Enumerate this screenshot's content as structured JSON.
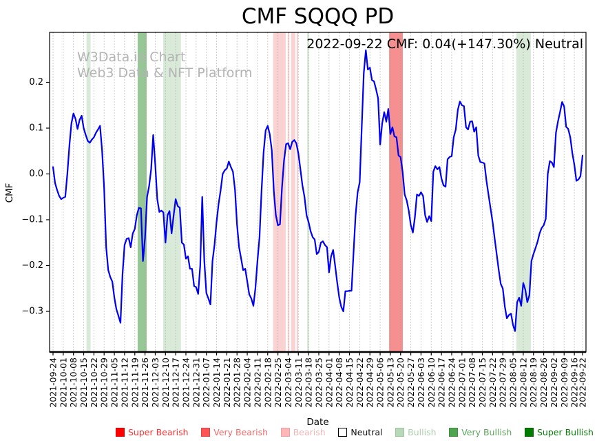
{
  "title": "CMF SQQQ PD",
  "annotation": "2022-09-22 CMF: 0.04(+147.30%) Neutral",
  "watermark": {
    "line1": "W3Data.io Chart",
    "line2": "Web3 Data & NFT Platform"
  },
  "chart_data": {
    "type": "line",
    "title": "CMF SQQQ PD",
    "xlabel": "Date",
    "ylabel": "CMF",
    "ylim": [
      -0.389,
      0.309
    ],
    "yticks": [
      0.2,
      0.1,
      0.0,
      -0.1,
      -0.2,
      -0.3
    ],
    "grid": "vertical-dotted",
    "legend_position": "bottom",
    "line_color": "#0000ee",
    "grid_color": "#999999",
    "x_tick_labels": [
      "2021-09-24",
      "2021-10-01",
      "2021-10-08",
      "2021-10-15",
      "2021-10-22",
      "2021-10-29",
      "2021-11-05",
      "2021-11-12",
      "2021-11-19",
      "2021-11-26",
      "2021-12-03",
      "2021-12-10",
      "2021-12-17",
      "2021-12-24",
      "2021-12-31",
      "2022-01-07",
      "2022-01-14",
      "2022-01-21",
      "2022-01-28",
      "2022-02-04",
      "2022-02-11",
      "2022-02-18",
      "2022-02-25",
      "2022-03-04",
      "2022-03-11",
      "2022-03-18",
      "2022-03-25",
      "2022-04-01",
      "2022-04-08",
      "2022-04-15",
      "2022-04-22",
      "2022-04-29",
      "2022-05-06",
      "2022-05-13",
      "2022-05-20",
      "2022-05-27",
      "2022-06-03",
      "2022-06-10",
      "2022-06-17",
      "2022-06-24",
      "2022-07-01",
      "2022-07-08",
      "2022-07-15",
      "2022-07-22",
      "2022-07-29",
      "2022-08-05",
      "2022-08-12",
      "2022-08-19",
      "2022-08-26",
      "2022-09-02",
      "2022-09-09",
      "2022-09-16",
      "2022-09-22"
    ],
    "points_per_tick": 5,
    "values": [
      0.015,
      -0.02,
      -0.035,
      -0.048,
      -0.055,
      -0.052,
      -0.05,
      0.0,
      0.062,
      0.11,
      0.132,
      0.12,
      0.098,
      0.118,
      0.127,
      0.1,
      0.085,
      0.072,
      0.068,
      0.075,
      0.08,
      0.09,
      0.097,
      0.105,
      0.05,
      -0.03,
      -0.16,
      -0.21,
      -0.225,
      -0.235,
      -0.27,
      -0.295,
      -0.31,
      -0.325,
      -0.22,
      -0.155,
      -0.142,
      -0.14,
      -0.16,
      -0.13,
      -0.12,
      -0.09,
      -0.074,
      -0.075,
      -0.19,
      -0.14,
      -0.05,
      -0.027,
      0.01,
      0.085,
      0.02,
      -0.055,
      -0.083,
      -0.08,
      -0.084,
      -0.15,
      -0.09,
      -0.081,
      -0.13,
      -0.09,
      -0.055,
      -0.07,
      -0.074,
      -0.15,
      -0.154,
      -0.185,
      -0.18,
      -0.207,
      -0.207,
      -0.245,
      -0.247,
      -0.262,
      -0.2,
      -0.05,
      -0.19,
      -0.26,
      -0.272,
      -0.285,
      -0.19,
      -0.154,
      -0.105,
      -0.065,
      -0.035,
      0.0,
      0.008,
      0.012,
      0.027,
      0.015,
      0.005,
      -0.035,
      -0.11,
      -0.16,
      -0.185,
      -0.21,
      -0.207,
      -0.235,
      -0.263,
      -0.272,
      -0.288,
      -0.25,
      -0.19,
      -0.138,
      -0.038,
      0.047,
      0.095,
      0.105,
      0.087,
      0.052,
      -0.038,
      -0.09,
      -0.112,
      -0.11,
      -0.03,
      0.03,
      0.065,
      0.067,
      0.054,
      0.07,
      0.074,
      0.067,
      0.045,
      0.01,
      -0.025,
      -0.05,
      -0.09,
      -0.105,
      -0.125,
      -0.138,
      -0.143,
      -0.175,
      -0.17,
      -0.15,
      -0.147,
      -0.155,
      -0.16,
      -0.215,
      -0.18,
      -0.166,
      -0.2,
      -0.237,
      -0.27,
      -0.29,
      -0.3,
      -0.256,
      -0.256,
      -0.255,
      -0.255,
      -0.17,
      -0.09,
      -0.04,
      -0.018,
      0.1,
      0.22,
      0.27,
      0.228,
      0.232,
      0.205,
      0.202,
      0.185,
      0.165,
      0.064,
      0.11,
      0.135,
      0.114,
      0.142,
      0.087,
      0.102,
      0.082,
      0.08,
      0.04,
      0.037,
      0.005,
      -0.045,
      -0.058,
      -0.08,
      -0.112,
      -0.128,
      -0.095,
      -0.045,
      -0.048,
      -0.04,
      -0.048,
      -0.09,
      -0.105,
      -0.092,
      -0.103,
      0.005,
      0.017,
      0.01,
      0.015,
      -0.01,
      -0.025,
      -0.028,
      0.032,
      0.037,
      0.039,
      0.08,
      0.097,
      0.14,
      0.158,
      0.15,
      0.148,
      0.102,
      0.097,
      0.114,
      0.115,
      0.092,
      0.102,
      0.04,
      0.026,
      0.025,
      0.023,
      -0.015,
      -0.045,
      -0.075,
      -0.105,
      -0.14,
      -0.175,
      -0.21,
      -0.24,
      -0.25,
      -0.29,
      -0.315,
      -0.308,
      -0.305,
      -0.33,
      -0.343,
      -0.28,
      -0.27,
      -0.288,
      -0.238,
      -0.253,
      -0.28,
      -0.265,
      -0.19,
      -0.175,
      -0.162,
      -0.148,
      -0.13,
      -0.118,
      -0.112,
      -0.098,
      0.0,
      0.028,
      0.025,
      0.015,
      0.09,
      0.115,
      0.135,
      0.157,
      0.147,
      0.103,
      0.098,
      0.08,
      0.045,
      0.02,
      -0.015,
      -0.012,
      -0.005,
      0.04
    ],
    "band_colors": {
      "Bearish": "#fad2d2",
      "Very Bearish": "#f69090",
      "Bullish": "#d9ead9",
      "Very Bullish": "#97c697"
    },
    "bands": [
      {
        "from": 16.4,
        "to": 18.4,
        "category": "Bullish"
      },
      {
        "from": 41.4,
        "to": 45.8,
        "category": "Very Bullish"
      },
      {
        "from": 53.9,
        "to": 62.6,
        "category": "Bullish"
      },
      {
        "from": 107.7,
        "to": 113.8,
        "category": "Bearish"
      },
      {
        "from": 114.8,
        "to": 115.6,
        "category": "Bearish"
      },
      {
        "from": 116.5,
        "to": 118.5,
        "category": "Bearish"
      },
      {
        "from": 119.2,
        "to": 119.9,
        "category": "Bearish"
      },
      {
        "from": 124.3,
        "to": 125.3,
        "category": "Bullish"
      },
      {
        "from": 164.4,
        "to": 171.1,
        "category": "Very Bearish"
      },
      {
        "from": 226.6,
        "to": 233.7,
        "category": "Bullish"
      }
    ],
    "legend": [
      {
        "label": "Super Bearish",
        "patch": "#ff0000",
        "text": "#ff3333",
        "border": "#e00000"
      },
      {
        "label": "Very Bearish",
        "patch": "#ff5454",
        "text": "#f06a6a",
        "border": "#e04444"
      },
      {
        "label": "Bearish",
        "patch": "#ffb6b6",
        "text": "#f2b6b6",
        "border": "#f0a0a0"
      },
      {
        "label": "Neutral",
        "patch": "#ffffff",
        "text": "#111111",
        "border": "#000000"
      },
      {
        "label": "Bullish",
        "patch": "#b7d9b7",
        "text": "#aed0ae",
        "border": "#9cc49c"
      },
      {
        "label": "Very Bullish",
        "patch": "#4fa44f",
        "text": "#5da65d",
        "border": "#3f8f3f"
      },
      {
        "label": "Super Bullish",
        "patch": "#007d00",
        "text": "#0b7d0b",
        "border": "#006400"
      }
    ]
  }
}
